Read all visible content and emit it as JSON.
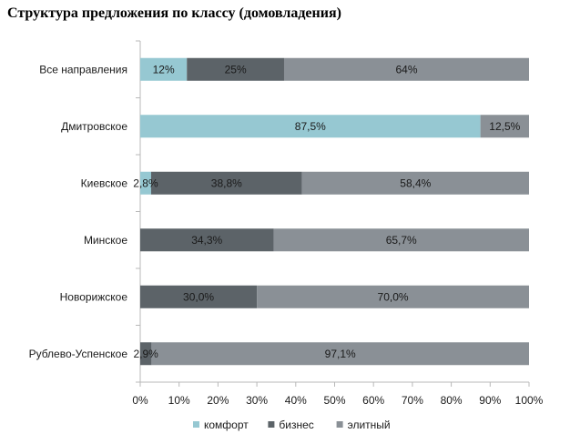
{
  "title": "Структура предложения по классу (домовладения)",
  "chart_data": {
    "type": "bar",
    "orientation": "horizontal",
    "stacked": true,
    "title": "Структура предложения по классу (домовладения)",
    "categories": [
      "Все направления",
      "Дмитровское",
      "Киевское",
      "Минское",
      "Новорижское",
      "Рублево-Успенское"
    ],
    "series": [
      {
        "name": "комфорт",
        "color": "#96c8d2",
        "values": [
          12,
          87.5,
          2.8,
          0,
          0,
          0
        ],
        "labels": [
          "12%",
          "87,5%",
          "2,8%",
          "",
          "",
          ""
        ]
      },
      {
        "name": "бизнес",
        "color": "#5c6368",
        "values": [
          25,
          0,
          38.8,
          34.3,
          30.0,
          2.9
        ],
        "labels": [
          "25%",
          "",
          "38,8%",
          "34,3%",
          "30,0%",
          "2,9%"
        ]
      },
      {
        "name": "элитный",
        "color": "#8a9096",
        "values": [
          64,
          12.5,
          58.4,
          65.7,
          70.0,
          97.1
        ],
        "labels": [
          "64%",
          "12,5%",
          "58,4%",
          "65,7%",
          "70,0%",
          "97,1%"
        ]
      }
    ],
    "xlim": [
      0,
      100
    ],
    "xticks": [
      "0%",
      "10%",
      "20%",
      "30%",
      "40%",
      "50%",
      "60%",
      "70%",
      "80%",
      "90%",
      "100%"
    ],
    "legend_position": "bottom",
    "grid": false
  }
}
